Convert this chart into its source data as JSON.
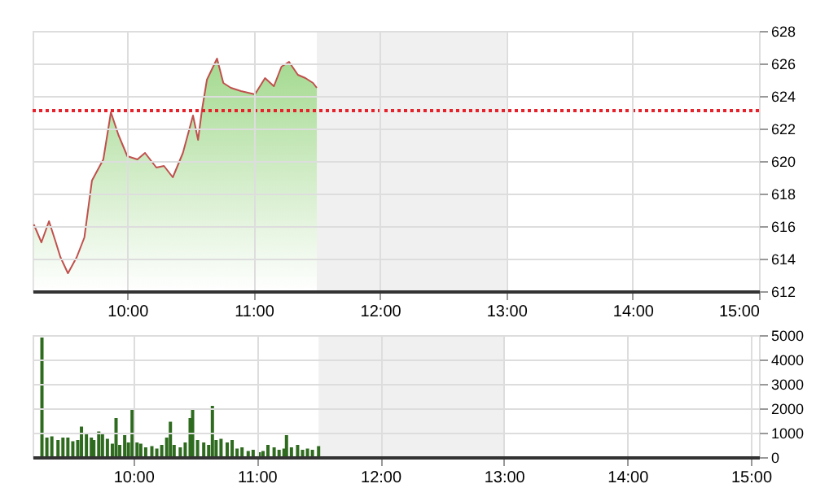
{
  "chart_data": [
    {
      "type": "area",
      "x": [
        9.26,
        9.32,
        9.38,
        9.43,
        9.47,
        9.53,
        9.6,
        9.66,
        9.72,
        9.81,
        9.87,
        9.93,
        10.0,
        10.08,
        10.14,
        10.23,
        10.29,
        10.36,
        10.44,
        10.52,
        10.56,
        10.59,
        10.63,
        10.71,
        10.76,
        10.82,
        10.9,
        11.01,
        11.09,
        11.16,
        11.22,
        11.28,
        11.35,
        11.41,
        11.47,
        11.5
      ],
      "series": [
        {
          "color": "#7cc95f",
          "values": [
            616.1,
            615.0,
            616.3,
            615.1,
            614.1,
            613.1,
            614.1,
            615.3,
            618.8,
            620.1,
            623.0,
            621.6,
            620.3,
            620.1,
            620.5,
            619.6,
            619.7,
            619.0,
            620.5,
            622.8,
            621.3,
            623.1,
            625.0,
            626.3,
            624.8,
            624.5,
            624.3,
            624.1,
            625.1,
            624.6,
            625.8,
            626.1,
            625.3,
            625.1,
            624.8,
            624.5
          ]
        }
      ],
      "xlim": [
        9.25,
        15
      ],
      "xticks": [
        {
          "value": 10,
          "label": "10:00"
        },
        {
          "value": 11,
          "label": "11:00"
        },
        {
          "value": 12,
          "label": "12:00"
        },
        {
          "value": 13,
          "label": "13:00"
        },
        {
          "value": 14,
          "label": "14:00"
        },
        {
          "value": 15,
          "label": "15:00"
        }
      ],
      "ylim": [
        612,
        628
      ],
      "yticks": [
        612,
        614,
        616,
        618,
        620,
        622,
        624,
        626,
        628
      ],
      "grid": true,
      "ref_lines": [
        {
          "axis": "y",
          "value": 623.1,
          "color": "#e8202a",
          "line_style": "dotted"
        }
      ],
      "bands": [
        {
          "axis": "x",
          "from": 11.5,
          "to": 13,
          "color": "#f0f0f0"
        }
      ]
    },
    {
      "type": "bar",
      "x": [
        9.26,
        9.3,
        9.34,
        9.39,
        9.43,
        9.47,
        9.51,
        9.55,
        9.58,
        9.62,
        9.66,
        9.68,
        9.72,
        9.75,
        9.79,
        9.83,
        9.86,
        9.89,
        9.93,
        9.96,
        9.99,
        10.03,
        10.06,
        10.1,
        10.15,
        10.19,
        10.23,
        10.27,
        10.3,
        10.33,
        10.38,
        10.42,
        10.46,
        10.48,
        10.52,
        10.57,
        10.61,
        10.64,
        10.67,
        10.71,
        10.76,
        10.8,
        10.84,
        10.88,
        10.93,
        10.97,
        11.02,
        11.05,
        11.09,
        11.14,
        11.18,
        11.22,
        11.24,
        11.28,
        11.33,
        11.37,
        11.41,
        11.45,
        11.5
      ],
      "series": [
        {
          "color": "#2e6b1f",
          "values": [
            4900,
            800,
            850,
            700,
            800,
            800,
            650,
            700,
            1250,
            1000,
            800,
            700,
            1050,
            950,
            750,
            550,
            1600,
            500,
            900,
            600,
            2000,
            600,
            550,
            400,
            450,
            350,
            500,
            800,
            1450,
            500,
            400,
            600,
            1600,
            2000,
            700,
            600,
            500,
            2100,
            700,
            750,
            600,
            700,
            350,
            400,
            250,
            300,
            200,
            250,
            500,
            400,
            300,
            350,
            900,
            400,
            500,
            300,
            350,
            300,
            450
          ]
        }
      ],
      "xlim": [
        9.25,
        15
      ],
      "xticks": [
        {
          "value": 10,
          "label": "10:00"
        },
        {
          "value": 11,
          "label": "11:00"
        },
        {
          "value": 12,
          "label": "12:00"
        },
        {
          "value": 13,
          "label": "13:00"
        },
        {
          "value": 14,
          "label": "14:00"
        },
        {
          "value": 15,
          "label": "15:00"
        }
      ],
      "ylim": [
        0,
        5000
      ],
      "yticks": [
        0,
        1000,
        2000,
        3000,
        4000,
        5000
      ],
      "grid": true,
      "bands": [
        {
          "axis": "x",
          "from": 11.5,
          "to": 13,
          "color": "#f0f0f0"
        }
      ]
    }
  ]
}
